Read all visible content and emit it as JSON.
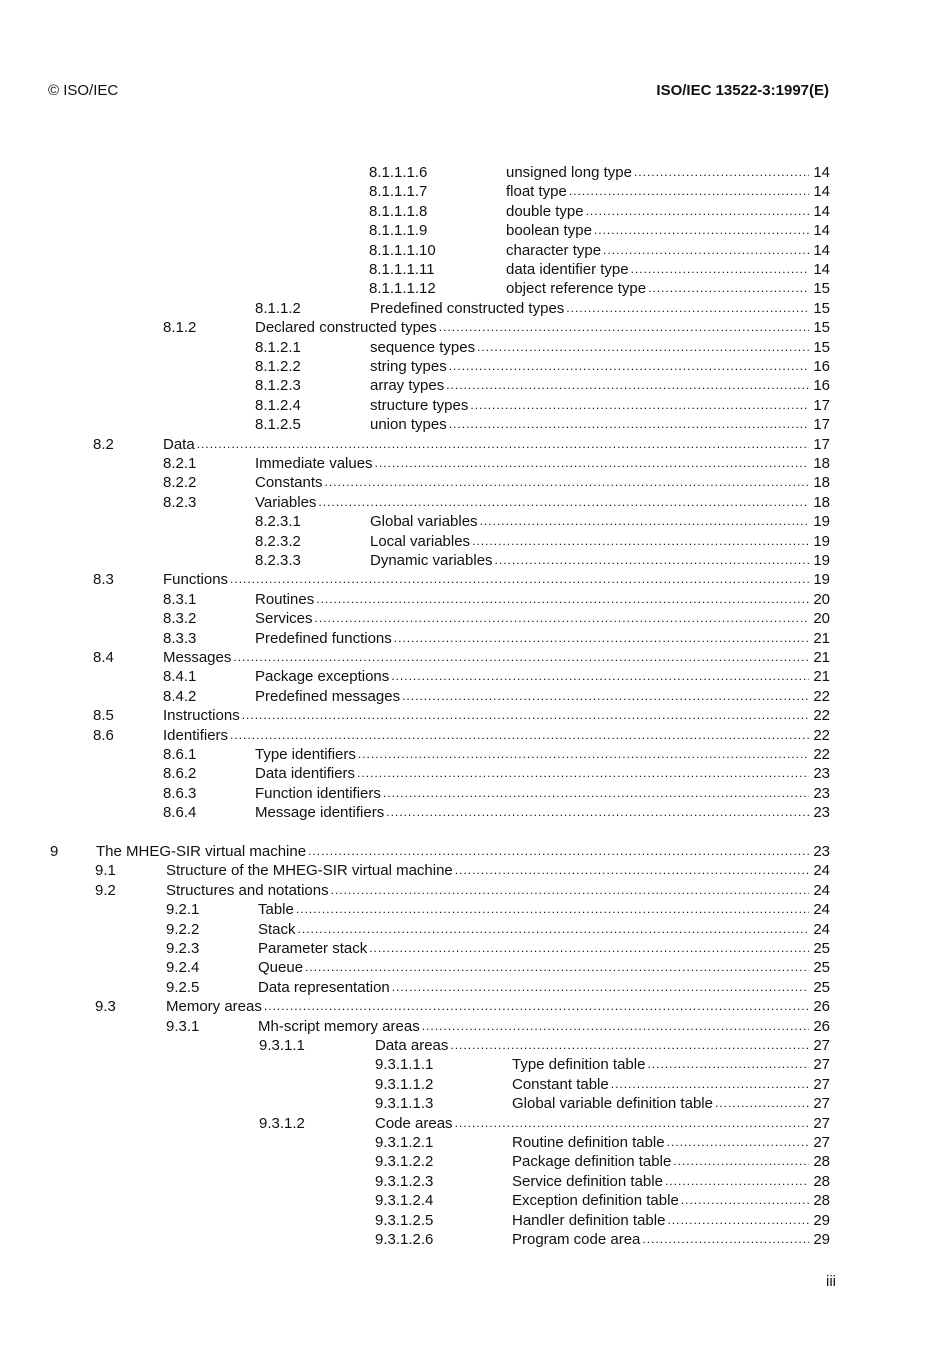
{
  "header": {
    "left": "© ISO/IEC",
    "right": "ISO/IEC 13522-3:1997(E)"
  },
  "footer": {
    "page": "iii"
  },
  "toc": [
    {
      "num": "8.1.1.1.6",
      "title": "unsigned long type",
      "page": "14",
      "level": 5
    },
    {
      "num": "8.1.1.1.7",
      "title": "float type",
      "page": "14",
      "level": 5
    },
    {
      "num": "8.1.1.1.8",
      "title": "double type",
      "page": "14",
      "level": 5
    },
    {
      "num": "8.1.1.1.9",
      "title": "boolean type",
      "page": "14",
      "level": 5
    },
    {
      "num": "8.1.1.1.10",
      "title": "character type",
      "page": "14",
      "level": 5
    },
    {
      "num": "8.1.1.1.11",
      "title": "data identifier type",
      "page": "14",
      "level": 5
    },
    {
      "num": "8.1.1.1.12",
      "title": "object reference type",
      "page": "15",
      "level": 5
    },
    {
      "num": "8.1.1.2",
      "title": "Predefined constructed types",
      "page": "15",
      "level": 4
    },
    {
      "num": "8.1.2",
      "title": "Declared constructed types",
      "page": "15",
      "level": 3
    },
    {
      "num": "8.1.2.1",
      "title": "sequence types",
      "page": "15",
      "level": 4
    },
    {
      "num": "8.1.2.2",
      "title": "string types",
      "page": "16",
      "level": 4
    },
    {
      "num": "8.1.2.3",
      "title": "array types",
      "page": "16",
      "level": 4
    },
    {
      "num": "8.1.2.4",
      "title": "structure types",
      "page": "17",
      "level": 4
    },
    {
      "num": "8.1.2.5",
      "title": "union types",
      "page": "17",
      "level": 4
    },
    {
      "num": "8.2",
      "title": "Data",
      "page": "17",
      "level": 2
    },
    {
      "num": "8.2.1",
      "title": "Immediate values",
      "page": "18",
      "level": 3
    },
    {
      "num": "8.2.2",
      "title": "Constants",
      "page": "18",
      "level": 3
    },
    {
      "num": "8.2.3",
      "title": "Variables",
      "page": "18",
      "level": 3
    },
    {
      "num": "8.2.3.1",
      "title": "Global variables",
      "page": "19",
      "level": 4
    },
    {
      "num": "8.2.3.2",
      "title": "Local variables",
      "page": "19",
      "level": 4
    },
    {
      "num": "8.2.3.3",
      "title": "Dynamic variables",
      "page": "19",
      "level": 4
    },
    {
      "num": "8.3",
      "title": "Functions",
      "page": "19",
      "level": 2
    },
    {
      "num": "8.3.1",
      "title": "Routines",
      "page": "20",
      "level": 3
    },
    {
      "num": "8.3.2",
      "title": "Services",
      "page": "20",
      "level": 3
    },
    {
      "num": "8.3.3",
      "title": "Predefined functions",
      "page": "21",
      "level": 3
    },
    {
      "num": "8.4",
      "title": "Messages",
      "page": "21",
      "level": 2
    },
    {
      "num": "8.4.1",
      "title": "Package exceptions",
      "page": "21",
      "level": 3
    },
    {
      "num": "8.4.2",
      "title": "Predefined messages",
      "page": "22",
      "level": 3
    },
    {
      "num": "8.5",
      "title": "Instructions",
      "page": "22",
      "level": 2
    },
    {
      "num": "8.6",
      "title": "Identifiers",
      "page": "22",
      "level": 2
    },
    {
      "num": "8.6.1",
      "title": "Type identifiers",
      "page": "22",
      "level": 3
    },
    {
      "num": "8.6.2",
      "title": "Data identifiers",
      "page": "23",
      "level": 3
    },
    {
      "num": "8.6.3",
      "title": "Function identifiers",
      "page": "23",
      "level": 3
    },
    {
      "num": "8.6.4",
      "title": "Message identifiers",
      "page": "23",
      "level": 3
    },
    {
      "num": "9",
      "title": "The MHEG-SIR virtual machine",
      "page": "23",
      "level": 1
    },
    {
      "num": "9.1",
      "title": "Structure of the MHEG-SIR virtual machine",
      "page": "24",
      "level": 2
    },
    {
      "num": "9.2",
      "title": "Structures and notations",
      "page": "24",
      "level": 2
    },
    {
      "num": "9.2.1",
      "title": "Table",
      "page": "24",
      "level": 3
    },
    {
      "num": "9.2.2",
      "title": "Stack",
      "page": "24",
      "level": 3
    },
    {
      "num": "9.2.3",
      "title": "Parameter stack",
      "page": "25",
      "level": 3
    },
    {
      "num": "9.2.4",
      "title": "Queue",
      "page": "25",
      "level": 3
    },
    {
      "num": "9.2.5",
      "title": "Data representation",
      "page": "25",
      "level": 3
    },
    {
      "num": "9.3",
      "title": "Memory areas",
      "page": "26",
      "level": 2
    },
    {
      "num": "9.3.1",
      "title": "Mh-script memory areas",
      "page": "26",
      "level": 3
    },
    {
      "num": "9.3.1.1",
      "title": "Data areas",
      "page": "27",
      "level": 4
    },
    {
      "num": "9.3.1.1.1",
      "title": "Type definition table",
      "page": "27",
      "level": 5
    },
    {
      "num": "9.3.1.1.2",
      "title": "Constant table",
      "page": "27",
      "level": 5
    },
    {
      "num": "9.3.1.1.3",
      "title": "Global variable definition table",
      "page": "27",
      "level": 5
    },
    {
      "num": "9.3.1.2",
      "title": "Code areas",
      "page": "27",
      "level": 4
    },
    {
      "num": "9.3.1.2.1",
      "title": "Routine definition table",
      "page": "27",
      "level": 5
    },
    {
      "num": "9.3.1.2.2",
      "title": "Package definition table",
      "page": "28",
      "level": 5
    },
    {
      "num": "9.3.1.2.3",
      "title": "Service definition table",
      "page": "28",
      "level": 5
    },
    {
      "num": "9.3.1.2.4",
      "title": "Exception definition table",
      "page": "28",
      "level": 5
    },
    {
      "num": "9.3.1.2.5",
      "title": "Handler definition table",
      "page": "29",
      "level": 5
    },
    {
      "num": "9.3.1.2.6",
      "title": "Program code area",
      "page": "29",
      "level": 5
    }
  ]
}
